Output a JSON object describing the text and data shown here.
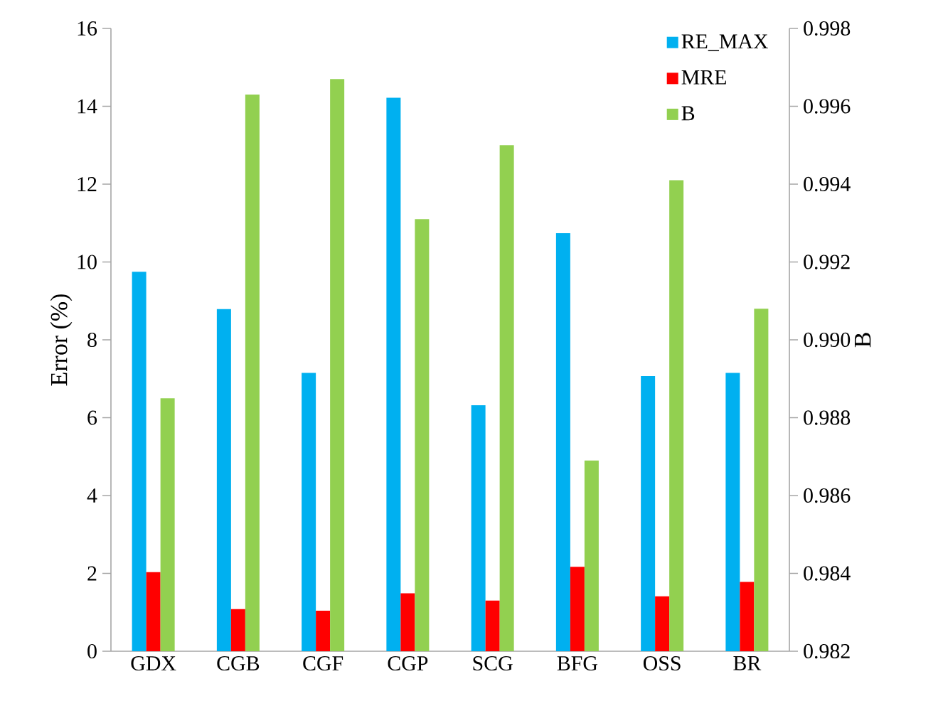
{
  "chart_data": {
    "type": "bar",
    "categories": [
      "GDX",
      "CGB",
      "CGF",
      "CGP",
      "SCG",
      "BFG",
      "OSS",
      "BR"
    ],
    "series": [
      {
        "name": "RE_MAX",
        "color": "#00b0f0",
        "values": [
          9.75,
          8.79,
          7.15,
          14.22,
          6.32,
          10.74,
          7.07,
          7.15
        ]
      },
      {
        "name": "MRE",
        "color": "#ff0000",
        "values": [
          2.03,
          1.08,
          1.04,
          1.49,
          1.3,
          2.17,
          1.41,
          1.78
        ]
      },
      {
        "name": "B",
        "color": "#92d050",
        "axis": "y2",
        "values": [
          0.9885,
          0.9963,
          0.9967,
          0.9931,
          0.995,
          0.9869,
          0.9941,
          0.9908
        ]
      }
    ],
    "ylabel": "Error (%)",
    "y2label": "B",
    "ylim": [
      0,
      16
    ],
    "yticks": [
      0,
      2,
      4,
      6,
      8,
      10,
      12,
      14,
      16
    ],
    "y2lim": [
      0.982,
      0.998
    ],
    "y2ticks": [
      {
        "value": 0.982,
        "label": "0.982"
      },
      {
        "value": 0.984,
        "label": "0.984"
      },
      {
        "value": 0.986,
        "label": "0.986"
      },
      {
        "value": 0.988,
        "label": "0.988"
      },
      {
        "value": 0.99,
        "label": "0.990"
      },
      {
        "value": 0.992,
        "label": "0.992"
      },
      {
        "value": 0.994,
        "label": "0.994"
      },
      {
        "value": 0.996,
        "label": "0.996"
      },
      {
        "value": 0.998,
        "label": "0.998"
      }
    ],
    "legend": "top right",
    "grid": false
  }
}
